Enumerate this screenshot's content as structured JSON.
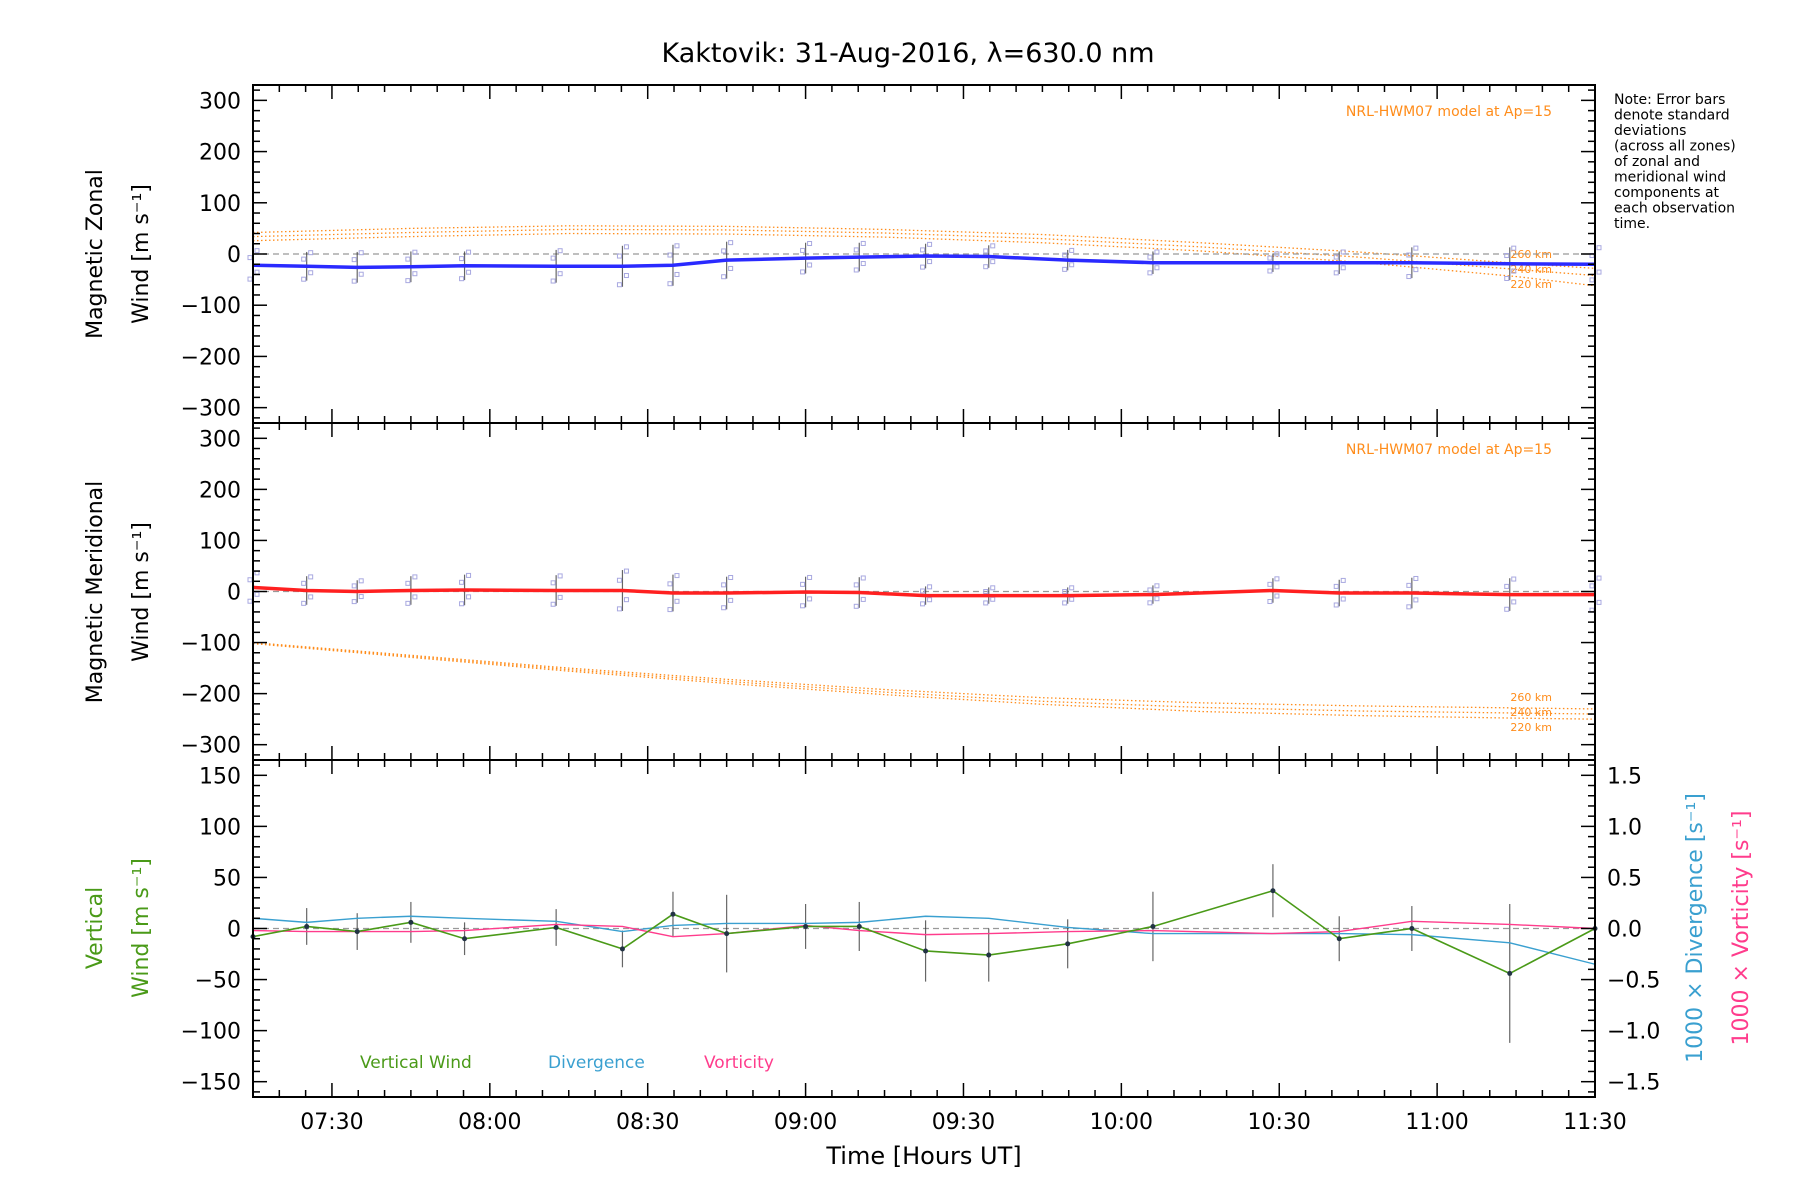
{
  "figure": {
    "title": "Kaktovik: 31-Aug-2016, λ=630.0 nm",
    "note": [
      "Note: Error bars",
      "denote standard",
      "deviations",
      "(across all zones)",
      "of zonal and",
      "meridional wind",
      "components at",
      "each observation",
      "time."
    ],
    "xlabel": "Time [Hours UT]",
    "xticks": [
      "07:30",
      "08:00",
      "08:30",
      "09:00",
      "09:30",
      "10:00",
      "10:30",
      "11:00",
      "11:30"
    ],
    "colors": {
      "zonal": "#2a2aff",
      "meridional": "#ff2020",
      "model": "#ff8c1a",
      "vertical": "#4a9a18",
      "divergence": "#3aa0d0",
      "vorticity": "#ff3c8c",
      "errbar": "#333333",
      "zones": "#a8a8e0"
    }
  },
  "chart_data": [
    {
      "type": "line",
      "panel": "zonal",
      "ylabel_line1": "Magnetic Zonal",
      "ylabel_line2": "Wind [m s⁻¹]",
      "ylim": [
        -330,
        330
      ],
      "yticks": [
        "300",
        "200",
        "100",
        "0",
        "−100",
        "−200",
        "−300"
      ],
      "model_label": "NRL-HWM07 model at Ap=15",
      "model_heights": [
        "260 km",
        "240 km",
        "220 km"
      ],
      "x": [
        7.25,
        7.42,
        7.58,
        7.75,
        7.92,
        8.21,
        8.42,
        8.58,
        8.75,
        9.0,
        9.17,
        9.38,
        9.58,
        9.83,
        10.1,
        10.48,
        10.69,
        10.92,
        11.23,
        11.5
      ],
      "series": [
        {
          "values": [
            -22,
            -24,
            -26,
            -25,
            -23,
            -24,
            -24,
            -22,
            -12,
            -8,
            -6,
            -4,
            -5,
            -12,
            -17,
            -17,
            -17,
            -17,
            -19,
            -20
          ]
        }
      ],
      "error": [
        30,
        28,
        30,
        30,
        28,
        32,
        40,
        40,
        36,
        30,
        28,
        24,
        22,
        20,
        22,
        18,
        22,
        30,
        32,
        34
      ],
      "model": {
        "x": [
          7.25,
          7.75,
          8.25,
          8.75,
          9.25,
          9.75,
          10.25,
          10.75,
          11.25,
          11.5
        ],
        "h260": [
          42,
          50,
          55,
          54,
          48,
          38,
          22,
          4,
          -18,
          -28
        ],
        "h240": [
          34,
          42,
          48,
          47,
          41,
          30,
          14,
          -6,
          -30,
          -42
        ],
        "h220": [
          26,
          34,
          40,
          39,
          33,
          22,
          6,
          -16,
          -44,
          -62
        ]
      }
    },
    {
      "type": "line",
      "panel": "meridional",
      "ylabel_line1": "Magnetic Meridional",
      "ylabel_line2": "Wind [m s⁻¹]",
      "ylim": [
        -330,
        330
      ],
      "yticks": [
        "300",
        "200",
        "100",
        "0",
        "−100",
        "−200",
        "−300"
      ],
      "model_label": "NRL-HWM07 model at Ap=15",
      "model_heights": [
        "260 km",
        "240 km",
        "220 km"
      ],
      "x": [
        7.25,
        7.42,
        7.58,
        7.75,
        7.92,
        8.21,
        8.42,
        8.58,
        8.75,
        9.0,
        9.17,
        9.38,
        9.58,
        9.83,
        10.1,
        10.48,
        10.69,
        10.92,
        11.23,
        11.5
      ],
      "series": [
        {
          "values": [
            8,
            2,
            0,
            2,
            3,
            2,
            2,
            -3,
            -3,
            -1,
            -2,
            -8,
            -8,
            -8,
            -6,
            2,
            -3,
            -3,
            -6,
            -6
          ]
        }
      ],
      "error": [
        30,
        28,
        22,
        28,
        30,
        30,
        40,
        36,
        32,
        30,
        30,
        18,
        16,
        16,
        18,
        24,
        26,
        30,
        32,
        34
      ],
      "model": {
        "x": [
          7.25,
          7.75,
          8.25,
          8.75,
          9.25,
          9.75,
          10.25,
          10.75,
          11.25,
          11.5
        ],
        "h260": [
          -100,
          -125,
          -150,
          -172,
          -192,
          -208,
          -218,
          -224,
          -228,
          -230
        ],
        "h240": [
          -101,
          -127,
          -153,
          -176,
          -197,
          -215,
          -227,
          -234,
          -238,
          -240
        ],
        "h220": [
          -102,
          -129,
          -156,
          -180,
          -202,
          -221,
          -235,
          -243,
          -248,
          -250
        ]
      }
    },
    {
      "type": "line",
      "panel": "vertical",
      "ylabel_line1": "Vertical",
      "ylabel_line2": "Wind [m s⁻¹]",
      "y2label_div": "1000 × Divergence [s⁻¹]",
      "y2label_vor": "1000 × Vorticity [s⁻¹]",
      "ylim": [
        -165,
        165
      ],
      "y2lim": [
        -1.65,
        1.65
      ],
      "yticks": [
        "150",
        "100",
        "50",
        "0",
        "−50",
        "−100",
        "−150"
      ],
      "y2ticks": [
        "1.5",
        "1.0",
        "0.5",
        "0.0",
        "−0.5",
        "−1.0",
        "−1.5"
      ],
      "legend": [
        "Vertical Wind",
        "Divergence",
        "Vorticity"
      ],
      "x": [
        7.25,
        7.42,
        7.58,
        7.75,
        7.92,
        8.21,
        8.42,
        8.58,
        8.75,
        9.0,
        9.17,
        9.38,
        9.58,
        9.83,
        10.1,
        10.48,
        10.69,
        10.92,
        11.23,
        11.5
      ],
      "series": [
        {
          "name": "Vertical Wind",
          "values": [
            -8,
            2,
            -3,
            6,
            -10,
            1,
            -20,
            14,
            -5,
            2,
            2,
            -22,
            -26,
            -15,
            2,
            37,
            -10,
            0,
            -44,
            0
          ]
        },
        {
          "name": "Divergence",
          "values": [
            0.1,
            0.06,
            0.1,
            0.12,
            0.1,
            0.07,
            -0.03,
            0.03,
            0.05,
            0.05,
            0.06,
            0.12,
            0.1,
            0.01,
            -0.05,
            -0.05,
            -0.05,
            -0.06,
            -0.14,
            -0.35
          ]
        },
        {
          "name": "Vorticity",
          "values": [
            -0.02,
            -0.03,
            -0.03,
            -0.03,
            -0.02,
            0.04,
            0.02,
            -0.08,
            -0.05,
            0.03,
            -0.02,
            -0.06,
            -0.05,
            -0.03,
            -0.02,
            -0.05,
            -0.03,
            0.07,
            0.04,
            0.0
          ]
        }
      ],
      "error": [
        15,
        18,
        18,
        20,
        16,
        18,
        18,
        22,
        38,
        22,
        24,
        30,
        26,
        24,
        34,
        26,
        22,
        22,
        68,
        20
      ]
    }
  ]
}
